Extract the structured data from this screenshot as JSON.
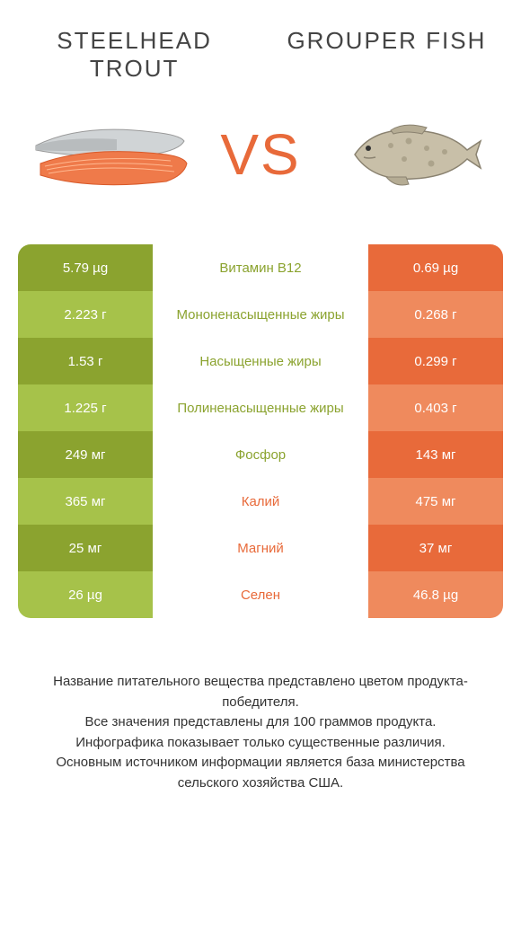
{
  "colors": {
    "green_dark": "#8ba32f",
    "green_light": "#a6c24a",
    "orange_dark": "#e86a3a",
    "orange_light": "#ef8a5d",
    "text": "#333333",
    "title": "#444444",
    "vs": "#e86a3a",
    "background": "#ffffff"
  },
  "left": {
    "title": "STEELHEAD TROUT"
  },
  "right": {
    "title": "GROUPER FISH"
  },
  "vs_label": "VS",
  "rows": [
    {
      "left": "5.79 µg",
      "mid": "Витамин B12",
      "right": "0.69 µg",
      "winner": "left"
    },
    {
      "left": "2.223 г",
      "mid": "Мононенасыщенные жиры",
      "right": "0.268 г",
      "winner": "left"
    },
    {
      "left": "1.53 г",
      "mid": "Насыщенные жиры",
      "right": "0.299 г",
      "winner": "left"
    },
    {
      "left": "1.225 г",
      "mid": "Полиненасыщенные жиры",
      "right": "0.403 г",
      "winner": "left"
    },
    {
      "left": "249 мг",
      "mid": "Фосфор",
      "right": "143 мг",
      "winner": "left"
    },
    {
      "left": "365 мг",
      "mid": "Калий",
      "right": "475 мг",
      "winner": "right"
    },
    {
      "left": "25 мг",
      "mid": "Магний",
      "right": "37 мг",
      "winner": "right"
    },
    {
      "left": "26 µg",
      "mid": "Селен",
      "right": "46.8 µg",
      "winner": "right"
    }
  ],
  "footer": {
    "l1": "Название питательного вещества представлено цветом продукта-победителя.",
    "l2": "Все значения представлены для 100 граммов продукта.",
    "l3": "Инфографика показывает только существенные различия.",
    "l4": "Основным источником информации является база министерства сельского хозяйства США."
  }
}
